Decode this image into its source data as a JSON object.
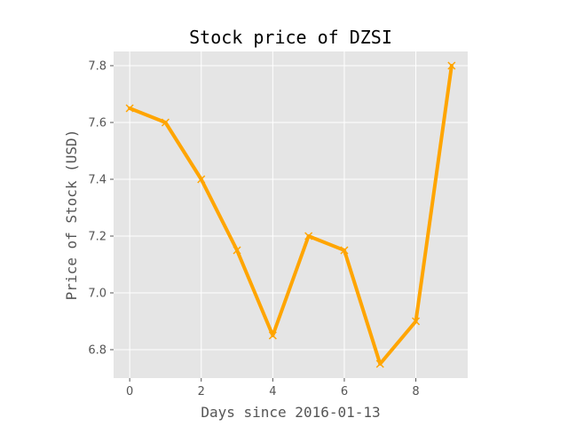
{
  "chart_data": {
    "type": "line",
    "title": "Stock price of DZSI",
    "xlabel": "Days since 2016-01-13",
    "ylabel": "Price of Stock (USD)",
    "x": [
      0,
      1,
      2,
      3,
      4,
      5,
      6,
      7,
      8,
      9
    ],
    "series": [
      {
        "values": [
          7.65,
          7.6,
          7.4,
          7.15,
          6.85,
          7.2,
          7.15,
          6.75,
          6.9,
          7.8
        ]
      }
    ],
    "xlim": [
      -0.45,
      9.45
    ],
    "ylim": [
      6.7,
      7.85
    ],
    "xticks": [
      0,
      2,
      4,
      6,
      8
    ],
    "xtick_labels": [
      "0",
      "2",
      "4",
      "6",
      "8"
    ],
    "yticks": [
      6.8,
      7.0,
      7.2,
      7.4,
      7.6,
      7.8
    ],
    "ytick_labels": [
      "6.8",
      "7.0",
      "7.2",
      "7.4",
      "7.6",
      "7.8"
    ],
    "grid": true,
    "marker": "x",
    "colors": {
      "line": "#FFA500",
      "plot_background": "#E5E5E5",
      "grid": "#FFFFFF"
    }
  }
}
